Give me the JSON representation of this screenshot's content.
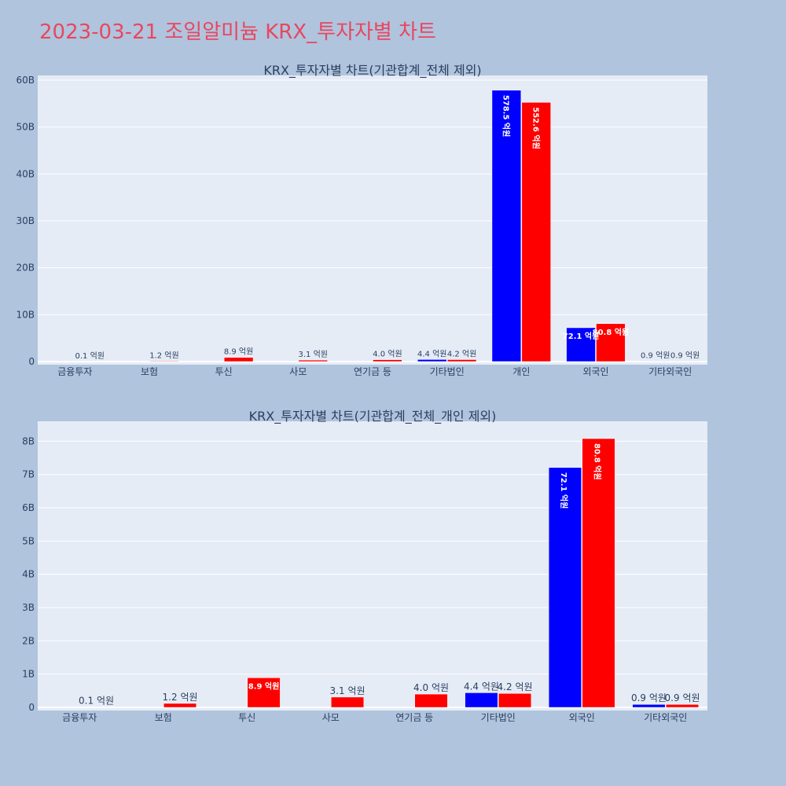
{
  "title": "2023-03-21 조일알미늄 KRX_투자자별 차트",
  "chart_data": [
    {
      "type": "bar",
      "title": "KRX_투자자별 차트(기관합계_전체 제외)",
      "categories": [
        "금융투자",
        "보험",
        "투신",
        "사모",
        "연기금 등",
        "기타법인",
        "개인",
        "외국인",
        "기타외국인"
      ],
      "ylim": [
        0,
        61000000000
      ],
      "yticks": [
        0,
        10000000000,
        20000000000,
        30000000000,
        40000000000,
        50000000000,
        60000000000
      ],
      "ytick_labels": [
        "0",
        "10B",
        "20B",
        "30B",
        "40B",
        "50B",
        "60B"
      ],
      "grid": true,
      "barmode": "group",
      "series": [
        {
          "color": "#0000ff",
          "values": [
            0,
            0,
            0,
            0,
            0,
            440000000,
            57850000000,
            7210000000,
            90000000
          ],
          "labels": [
            "",
            "",
            "",
            "",
            "",
            "4.4 억원",
            "578.5 억원",
            "72.1 억원",
            "0.9 억원"
          ]
        },
        {
          "color": "#ff0000",
          "values": [
            10000000,
            120000000,
            890000000,
            310000000,
            400000000,
            420000000,
            55260000000,
            8080000000,
            90000000
          ],
          "labels": [
            "0.1 억원",
            "1.2 억원",
            "8.9 억원",
            "3.1 억원",
            "4.0 억원",
            "4.2 억원",
            "552.6 억원",
            "80.8 억원",
            "0.9 억원"
          ]
        }
      ]
    },
    {
      "type": "bar",
      "title": "KRX_투자자별 차트(기관합계_전체_개인 제외)",
      "categories": [
        "금융투자",
        "보험",
        "투신",
        "사모",
        "연기금 등",
        "기타법인",
        "외국인",
        "기타외국인"
      ],
      "ylim": [
        0,
        8600000000
      ],
      "yticks": [
        0,
        1000000000,
        2000000000,
        3000000000,
        4000000000,
        5000000000,
        6000000000,
        7000000000,
        8000000000
      ],
      "ytick_labels": [
        "0",
        "1B",
        "2B",
        "3B",
        "4B",
        "5B",
        "6B",
        "7B",
        "8B"
      ],
      "grid": true,
      "barmode": "group",
      "series": [
        {
          "color": "#0000ff",
          "values": [
            0,
            0,
            0,
            0,
            0,
            440000000,
            7210000000,
            90000000
          ],
          "labels": [
            "",
            "",
            "",
            "",
            "",
            "4.4 억원",
            "72.1 억원",
            "0.9 억원"
          ]
        },
        {
          "color": "#ff0000",
          "values": [
            10000000,
            120000000,
            890000000,
            310000000,
            400000000,
            420000000,
            8080000000,
            90000000
          ],
          "labels": [
            "0.1 억원",
            "1.2 억원",
            "8.9 억원",
            "3.1 억원",
            "4.0 억원",
            "4.2 억원",
            "80.8 억원",
            "0.9 억원"
          ]
        }
      ]
    }
  ]
}
